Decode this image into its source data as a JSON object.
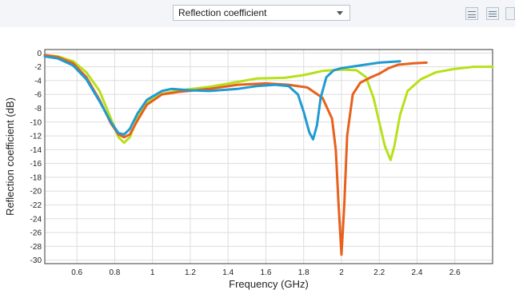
{
  "toolbar": {
    "selector_value": "Reflection coefficient",
    "icons": [
      "chart-settings-icon",
      "legend-icon",
      "chart-view-icon"
    ]
  },
  "chart_data": {
    "type": "line",
    "title": "",
    "xlabel": "Frequency (GHz)",
    "ylabel": "Reflection coefficient (dB)",
    "xlim": [
      0.43,
      2.8
    ],
    "ylim": [
      -30.5,
      0.5
    ],
    "xticks": [
      0.6,
      0.8,
      1,
      1.2,
      1.4,
      1.6,
      1.8,
      2,
      2.2,
      2.4,
      2.6
    ],
    "yticks": [
      0,
      -2,
      -4,
      -6,
      -8,
      -10,
      -12,
      -14,
      -16,
      -18,
      -20,
      -22,
      -24,
      -26,
      -28,
      -30
    ],
    "grid": true,
    "series": [
      {
        "color": "#b8e01a",
        "x": [
          0.43,
          0.5,
          0.58,
          0.65,
          0.72,
          0.78,
          0.82,
          0.85,
          0.88,
          0.92,
          0.97,
          1.05,
          1.15,
          1.3,
          1.45,
          1.55,
          1.7,
          1.8,
          1.9,
          2.0,
          2.08,
          2.13,
          2.17,
          2.2,
          2.23,
          2.26,
          2.28,
          2.31,
          2.35,
          2.42,
          2.5,
          2.6,
          2.7,
          2.8
        ],
        "y": [
          -0.3,
          -0.5,
          -1.2,
          -2.8,
          -5.5,
          -9.5,
          -12.2,
          -13.0,
          -12.2,
          -9.5,
          -7.2,
          -5.9,
          -5.4,
          -4.9,
          -4.2,
          -3.7,
          -3.6,
          -3.2,
          -2.6,
          -2.4,
          -2.5,
          -3.5,
          -6.5,
          -10.0,
          -13.5,
          -15.5,
          -13.5,
          -9.0,
          -5.5,
          -3.8,
          -2.8,
          -2.3,
          -2.0,
          -2.0
        ]
      },
      {
        "color": "#e8601c",
        "x": [
          0.43,
          0.5,
          0.58,
          0.65,
          0.72,
          0.78,
          0.82,
          0.85,
          0.88,
          0.92,
          0.97,
          1.05,
          1.15,
          1.3,
          1.45,
          1.6,
          1.72,
          1.82,
          1.9,
          1.95,
          1.97,
          1.985,
          2.0,
          2.015,
          2.03,
          2.06,
          2.1,
          2.15,
          2.2,
          2.25,
          2.3,
          2.38,
          2.45
        ],
        "y": [
          -0.3,
          -0.6,
          -1.5,
          -3.5,
          -6.8,
          -10.2,
          -11.8,
          -12.2,
          -11.8,
          -9.8,
          -7.5,
          -6.0,
          -5.6,
          -5.2,
          -4.6,
          -4.4,
          -4.6,
          -5.0,
          -6.5,
          -9.5,
          -14.0,
          -22.0,
          -29.2,
          -22.0,
          -12.0,
          -6.0,
          -4.3,
          -3.6,
          -3.0,
          -2.2,
          -1.7,
          -1.5,
          -1.4
        ]
      },
      {
        "color": "#1f9bd1",
        "x": [
          0.43,
          0.5,
          0.58,
          0.65,
          0.72,
          0.78,
          0.82,
          0.85,
          0.88,
          0.92,
          0.97,
          1.05,
          1.1,
          1.2,
          1.3,
          1.45,
          1.55,
          1.65,
          1.72,
          1.77,
          1.8,
          1.83,
          1.85,
          1.87,
          1.89,
          1.92,
          1.96,
          2.0,
          2.05,
          2.1,
          2.2,
          2.31
        ],
        "y": [
          -0.5,
          -0.8,
          -1.8,
          -3.8,
          -7.0,
          -10.0,
          -11.6,
          -11.8,
          -11.0,
          -8.8,
          -6.8,
          -5.5,
          -5.2,
          -5.4,
          -5.5,
          -5.2,
          -4.8,
          -4.6,
          -4.8,
          -6.0,
          -8.5,
          -11.5,
          -12.5,
          -10.5,
          -6.5,
          -3.5,
          -2.5,
          -2.2,
          -2.0,
          -1.8,
          -1.4,
          -1.2
        ]
      }
    ]
  }
}
